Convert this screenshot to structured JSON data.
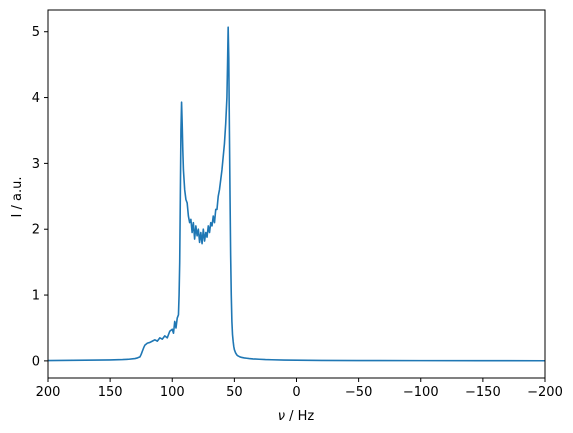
{
  "chart_data": {
    "type": "line",
    "title": "",
    "xlabel_symbol": "ν",
    "xlabel_unit": " / Hz",
    "ylabel": "I / a.u.",
    "xlim": [
      200,
      -200
    ],
    "ylim": [
      -0.26,
      5.33
    ],
    "x_ticks": [
      200,
      150,
      100,
      50,
      0,
      -50,
      -100,
      -150,
      -200
    ],
    "x_tick_labels": [
      "200",
      "150",
      "100",
      "50",
      "0",
      "−50",
      "−100",
      "−150",
      "−200"
    ],
    "y_ticks": [
      0,
      1,
      2,
      3,
      4,
      5
    ],
    "y_tick_labels": [
      "0",
      "1",
      "2",
      "3",
      "4",
      "5"
    ],
    "grid": false,
    "series": [
      {
        "color": "#1f77b4",
        "x": [
          200,
          180,
          160,
          150,
          140,
          135,
          130,
          128,
          126,
          125,
          124,
          123,
          122,
          120,
          118,
          116,
          114,
          112,
          110,
          108,
          106,
          104,
          102,
          100,
          99,
          98,
          97,
          96,
          95,
          94.5,
          94,
          93.5,
          93,
          92.5,
          92,
          91.5,
          91,
          90,
          89,
          88,
          87,
          86,
          85,
          84,
          83,
          82,
          81,
          80,
          79,
          78,
          77,
          76,
          75,
          74,
          73,
          72,
          71,
          70,
          69,
          68,
          67,
          66,
          65,
          64,
          63,
          62,
          61,
          60,
          59,
          58,
          57,
          56,
          55.5,
          55,
          54.5,
          54,
          53.5,
          53,
          52.5,
          52,
          51.5,
          51,
          50.5,
          50,
          49,
          48,
          47,
          46,
          45,
          44,
          42,
          40,
          38,
          35,
          30,
          25,
          20,
          10,
          0,
          -20,
          -50,
          -100,
          -150,
          -200
        ],
        "y": [
          0.005,
          0.008,
          0.012,
          0.015,
          0.02,
          0.025,
          0.035,
          0.045,
          0.06,
          0.1,
          0.15,
          0.2,
          0.24,
          0.27,
          0.28,
          0.3,
          0.32,
          0.3,
          0.35,
          0.33,
          0.38,
          0.35,
          0.45,
          0.48,
          0.42,
          0.6,
          0.5,
          0.65,
          0.7,
          1.0,
          1.5,
          2.5,
          3.5,
          3.93,
          3.6,
          3.2,
          2.9,
          2.6,
          2.45,
          2.4,
          2.2,
          2.1,
          2.15,
          1.95,
          2.1,
          1.85,
          2.05,
          1.9,
          2.0,
          1.8,
          1.95,
          1.78,
          2.0,
          1.82,
          1.95,
          1.88,
          2.05,
          1.95,
          2.1,
          2.05,
          2.2,
          2.1,
          2.3,
          2.3,
          2.5,
          2.6,
          2.75,
          2.9,
          3.1,
          3.3,
          3.6,
          4.0,
          4.5,
          5.07,
          4.6,
          3.5,
          2.5,
          1.6,
          1.0,
          0.6,
          0.4,
          0.3,
          0.22,
          0.17,
          0.12,
          0.09,
          0.075,
          0.065,
          0.058,
          0.052,
          0.045,
          0.04,
          0.035,
          0.03,
          0.025,
          0.02,
          0.017,
          0.012,
          0.01,
          0.007,
          0.005,
          0.004,
          0.003,
          0.002
        ]
      }
    ]
  }
}
